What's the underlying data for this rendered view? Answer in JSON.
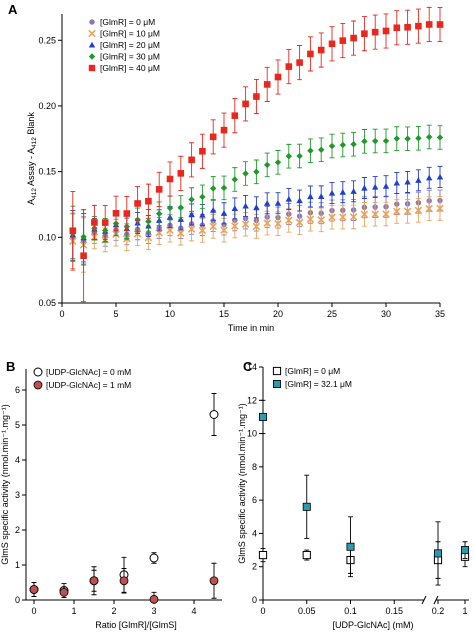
{
  "panels": {
    "a": {
      "label": "A"
    },
    "b": {
      "label": "B"
    },
    "c": {
      "label": "C"
    }
  },
  "chart_data": [
    {
      "id": "A",
      "type": "scatter",
      "xlabel": "Time in min",
      "ylabel_parts": {
        "a1": "A",
        "s1": "412",
        "mid": " Assay - A",
        "s2": "412",
        "end": " Blank"
      },
      "xlim": [
        0,
        35
      ],
      "ylim": [
        0.05,
        0.27
      ],
      "xticks": [
        0,
        5,
        10,
        15,
        20,
        25,
        30,
        35
      ],
      "yticks": [
        0.05,
        0.1,
        0.15,
        0.2,
        0.25
      ],
      "ytick_labels": [
        "0.05",
        "0.10",
        "0.15",
        "0.20",
        "0.25"
      ],
      "legend": {
        "position": "top-left"
      },
      "series": [
        {
          "name": "[GlmR] =   0 μM",
          "marker": "circle",
          "color": "#8b78b4",
          "y_start": 0.1,
          "y_end": 0.128,
          "shape": "linear",
          "err": 0.008
        },
        {
          "name": "[GlmR] = 10 μM",
          "marker": "x",
          "color": "#e8a35a",
          "y_start": 0.097,
          "y_end": 0.122,
          "shape": "linear",
          "err": 0.009
        },
        {
          "name": "[GlmR] = 20 μM",
          "marker": "triangle",
          "color": "#1f3fcf",
          "y_start": 0.102,
          "y_end": 0.146,
          "shape": "linear",
          "err": 0.008
        },
        {
          "name": "[GlmR] = 30 μM",
          "marker": "diamond",
          "color": "#1f9a2a",
          "y_start": 0.103,
          "y_end": 0.176,
          "shape": "sigmoid",
          "err": 0.009
        },
        {
          "name": "[GlmR] = 40 μM",
          "marker": "square",
          "color": "#e8281e",
          "y_start": 0.105,
          "y_end": 0.262,
          "shape": "sigmoid",
          "err": 0.013
        }
      ]
    },
    {
      "id": "B",
      "type": "scatter",
      "xlabel": "Ratio [GlmR]/[GlmS]",
      "ylabel": "GlmS specific activity (nmol.min⁻¹.mg⁻¹)",
      "xlim": [
        -0.2,
        4.7
      ],
      "ylim": [
        0,
        6.6
      ],
      "xticks": [
        0,
        1,
        2,
        3,
        4
      ],
      "yticks": [
        0,
        1,
        2,
        3,
        4,
        5,
        6
      ],
      "legend": {
        "position": "top-left"
      },
      "series": [
        {
          "name": "[UDP-GlcNAc] = 0 mM",
          "marker": "circle-open",
          "color": "#000000",
          "x": [
            0,
            0.75,
            1.5,
            2.25,
            3.0,
            4.5
          ],
          "y": [
            0.3,
            0.27,
            0.55,
            0.72,
            1.2,
            5.3
          ],
          "err": [
            0.2,
            0.2,
            0.3,
            0.5,
            0.15,
            0.6
          ]
        },
        {
          "name": "[UDP-GlcNAc] = 1 mM",
          "marker": "circle",
          "color": "#c0504d",
          "x": [
            0,
            0.75,
            1.5,
            2.25,
            3.0,
            4.5
          ],
          "y": [
            0.3,
            0.22,
            0.55,
            0.55,
            0.02,
            0.55
          ],
          "err": [
            0.2,
            0.15,
            0.4,
            0.35,
            0.2,
            0.5
          ]
        }
      ]
    },
    {
      "id": "C",
      "type": "scatter",
      "xlabel": "[UDP-GlcNAc] (mM)",
      "ylabel": "GlmS specific activity (nmol.min⁻¹.mg⁻¹)",
      "ylim": [
        0,
        14
      ],
      "yticks": [
        0,
        2,
        4,
        6,
        8,
        10,
        12,
        14
      ],
      "xticks": [
        0,
        0.05,
        0.1,
        0.15,
        0.2,
        1
      ],
      "xtick_labels": [
        "0",
        "0.05",
        "0.1",
        "0.15",
        "0.2",
        "1"
      ],
      "axis_break": true,
      "legend": {
        "position": "top-left"
      },
      "series": [
        {
          "name": "[GlmR] =   0 μM",
          "marker": "square-open",
          "color": "#000000",
          "x": [
            0,
            0.05,
            0.1,
            0.2,
            1
          ],
          "y": [
            2.7,
            2.7,
            2.4,
            2.4,
            2.6
          ],
          "err": [
            0.4,
            0.3,
            0.8,
            1.1,
            0.6
          ]
        },
        {
          "name": "[GlmR] = 32.1  μM",
          "marker": "square",
          "color": "#2e9ab2",
          "x": [
            0,
            0.05,
            0.1,
            0.2,
            1
          ],
          "y": [
            11.0,
            5.6,
            3.2,
            2.8,
            3.0
          ],
          "err": [
            1.0,
            1.9,
            1.8,
            1.9,
            0.5
          ]
        }
      ]
    }
  ]
}
